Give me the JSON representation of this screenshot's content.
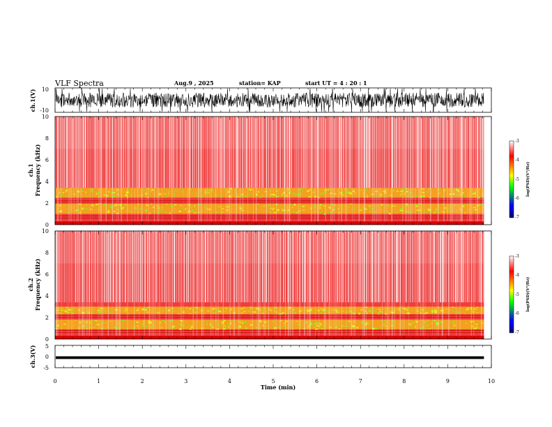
{
  "header": {
    "title": "VLF Spectra",
    "date": "Aug.9 , 2025",
    "station": "station= KAP",
    "start": "start UT = 4 : 20 : 1"
  },
  "chart_data": {
    "type": "heatmap",
    "title": "VLF Spectra",
    "x": {
      "label": "Time (min)",
      "range": [
        0,
        10
      ],
      "ticks": [
        "0",
        "1",
        "2",
        "3",
        "4",
        "5",
        "6",
        "7",
        "8",
        "9",
        "10"
      ],
      "data_end": 9.83
    },
    "panels": [
      {
        "id": "ch1-waveform",
        "type": "line",
        "ylabel": "ch.1(V)",
        "ylim": [
          -10,
          10
        ],
        "ytick_labels": [
          "10",
          "-10"
        ],
        "typical_range": [
          -6,
          6
        ]
      },
      {
        "id": "ch1-spectrogram",
        "type": "heatmap",
        "ylabel": "Frequency (kHz)",
        "channel_label": "ch.1",
        "ylim": [
          0,
          10
        ],
        "ytick_labels": [
          "0",
          "2",
          "4",
          "6",
          "8",
          "10"
        ],
        "bands_khz": [
          {
            "range": [
              0,
              0.3
            ],
            "level": "high"
          },
          {
            "range": [
              1.0,
              2.0
            ],
            "level": "mid"
          },
          {
            "range": [
              2.5,
              3.4
            ],
            "level": "mid"
          }
        ]
      },
      {
        "id": "ch2-spectrogram",
        "type": "heatmap",
        "ylabel": "Frequency (kHz)",
        "channel_label": "ch.2",
        "ylim": [
          0,
          10
        ],
        "ytick_labels": [
          "0",
          "2",
          "4",
          "6",
          "8",
          "10"
        ],
        "bands_khz": [
          {
            "range": [
              0,
              0.3
            ],
            "level": "high"
          },
          {
            "range": [
              0.9,
              1.8
            ],
            "level": "mid"
          },
          {
            "range": [
              2.3,
              3.0
            ],
            "level": "mid"
          }
        ]
      },
      {
        "id": "ch3-waveform",
        "type": "line",
        "ylabel": "ch.3(V)",
        "ylim": [
          -5,
          5
        ],
        "ytick_labels": [
          "5",
          "0",
          "-5"
        ],
        "level": -0.5
      }
    ],
    "colorbar": {
      "label": "log(PSD)(V²/Hz)",
      "range": [
        -7,
        -3
      ],
      "ticks": [
        "-3",
        "-4",
        "-5",
        "-6",
        "-7"
      ],
      "colors": [
        "#ffffff",
        "#ff0000",
        "#ffff00",
        "#00ff00",
        "#0000ff",
        "#00007a"
      ]
    }
  }
}
